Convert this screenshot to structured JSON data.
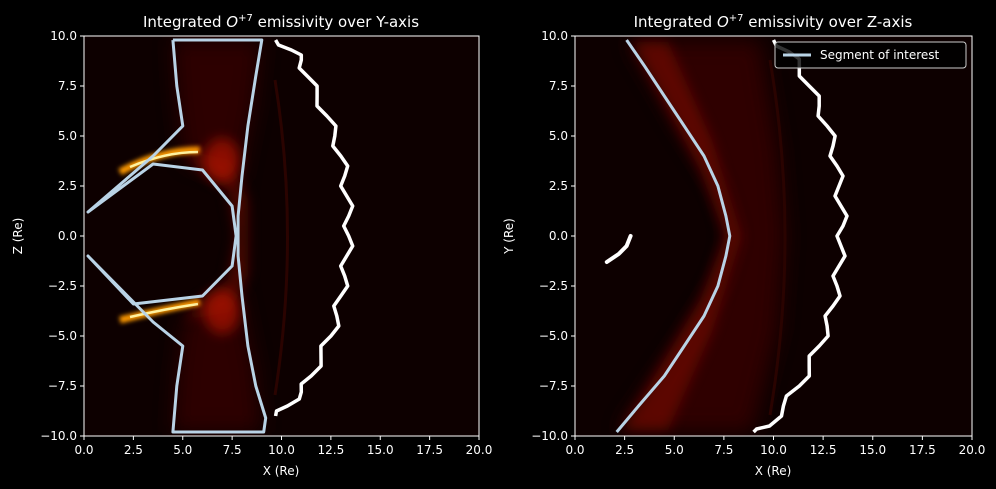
{
  "figure": {
    "background": "#000000",
    "plot_background": "#0d0000",
    "colormap": "afmhot-like",
    "contour_color_segment": "#b9d3e6",
    "contour_color_outer": "#ffffff"
  },
  "chart_data": [
    {
      "type": "heatmap",
      "title_prefix": "Integrated ",
      "title_species": "O",
      "title_superscript": "+7",
      "title_suffix": " emissivity over Y-axis",
      "xlabel": "X (Re)",
      "ylabel": "Z (Re)",
      "xlim": [
        0.0,
        20.0
      ],
      "ylim": [
        -10.0,
        10.0
      ],
      "xticks": [
        "0.0",
        "2.5",
        "5.0",
        "7.5",
        "10.0",
        "12.5",
        "15.0",
        "17.5",
        "20.0"
      ],
      "yticks": [
        "10.0",
        "7.5",
        "5.0",
        "2.5",
        "0.0",
        "−2.5",
        "−5.0",
        "−7.5",
        "−10.0"
      ],
      "grid": false,
      "legend": null,
      "series": [
        {
          "style": "light-blue outline",
          "points": [
            [
              4.5,
              9.8
            ],
            [
              9.0,
              9.8
            ],
            [
              8.7,
              8.0
            ],
            [
              8.3,
              5.5
            ],
            [
              8.0,
              3.0
            ],
            [
              7.8,
              1.0
            ],
            [
              7.8,
              -1.0
            ],
            [
              8.0,
              -3.0
            ],
            [
              8.3,
              -5.5
            ],
            [
              8.7,
              -7.5
            ],
            [
              9.2,
              -9.1
            ],
            [
              9.1,
              -9.8
            ],
            [
              4.5,
              -9.8
            ],
            [
              4.7,
              -7.5
            ],
            [
              5.0,
              -5.5
            ],
            [
              3.5,
              -4.3
            ],
            [
              0.2,
              -1.0
            ],
            [
              2.5,
              -3.4
            ],
            [
              6.0,
              -3.0
            ],
            [
              7.5,
              -1.5
            ],
            [
              7.7,
              0.0
            ],
            [
              7.5,
              1.5
            ],
            [
              6.0,
              3.3
            ],
            [
              3.5,
              3.6
            ],
            [
              0.2,
              1.2
            ],
            [
              3.5,
              4.0
            ],
            [
              5.0,
              5.5
            ],
            [
              4.7,
              7.5
            ],
            [
              4.5,
              9.8
            ]
          ]
        },
        {
          "style": "white noisy contour",
          "points": [
            [
              9.7,
              9.8
            ],
            [
              10.5,
              9.3
            ],
            [
              11.0,
              8.8
            ],
            [
              11.3,
              8.0
            ],
            [
              11.8,
              7.0
            ],
            [
              12.3,
              6.0
            ],
            [
              12.7,
              5.0
            ],
            [
              13.0,
              4.0
            ],
            [
              13.2,
              3.0
            ],
            [
              13.3,
              2.0
            ],
            [
              13.4,
              1.0
            ],
            [
              13.4,
              0.0
            ],
            [
              13.3,
              -1.0
            ],
            [
              13.2,
              -2.0
            ],
            [
              13.0,
              -3.0
            ],
            [
              12.8,
              -4.0
            ],
            [
              12.5,
              -5.0
            ],
            [
              12.0,
              -6.0
            ],
            [
              11.5,
              -7.0
            ],
            [
              11.0,
              -7.8
            ],
            [
              10.3,
              -8.5
            ],
            [
              9.7,
              -9.0
            ]
          ]
        }
      ]
    },
    {
      "type": "heatmap",
      "title_prefix": "Integrated ",
      "title_species": "O",
      "title_superscript": "+7",
      "title_suffix": " emissivity over Z-axis",
      "xlabel": "X (Re)",
      "ylabel": "Y (Re)",
      "xlim": [
        0.0,
        20.0
      ],
      "ylim": [
        -10.0,
        10.0
      ],
      "xticks": [
        "0.0",
        "2.5",
        "5.0",
        "7.5",
        "10.0",
        "12.5",
        "15.0",
        "17.5",
        "20.0"
      ],
      "yticks": [
        "10.0",
        "7.5",
        "5.0",
        "2.5",
        "0.0",
        "−2.5",
        "−5.0",
        "−7.5",
        "−10.0"
      ],
      "grid": false,
      "legend": {
        "position": "top-right",
        "entries": [
          "Segment of interest"
        ]
      },
      "series": [
        {
          "name": "Segment of interest",
          "style": "light-blue outline",
          "points": [
            [
              2.6,
              9.8
            ],
            [
              3.5,
              8.5
            ],
            [
              4.5,
              7.0
            ],
            [
              5.5,
              5.5
            ],
            [
              6.5,
              4.0
            ],
            [
              7.2,
              2.5
            ],
            [
              7.6,
              1.0
            ],
            [
              7.8,
              0.0
            ],
            [
              7.6,
              -1.0
            ],
            [
              7.2,
              -2.5
            ],
            [
              6.5,
              -4.0
            ],
            [
              5.5,
              -5.5
            ],
            [
              4.5,
              -7.0
            ],
            [
              3.2,
              -8.5
            ],
            [
              2.1,
              -9.8
            ]
          ]
        },
        {
          "style": "white noisy contour",
          "points": [
            [
              10.0,
              9.8
            ],
            [
              10.8,
              9.2
            ],
            [
              11.3,
              8.5
            ],
            [
              11.8,
              7.5
            ],
            [
              12.3,
              6.5
            ],
            [
              12.7,
              5.5
            ],
            [
              13.0,
              4.5
            ],
            [
              13.2,
              3.5
            ],
            [
              13.3,
              2.5
            ],
            [
              13.4,
              1.5
            ],
            [
              13.5,
              0.5
            ],
            [
              13.4,
              -0.5
            ],
            [
              13.3,
              -1.5
            ],
            [
              13.2,
              -2.5
            ],
            [
              13.0,
              -3.5
            ],
            [
              12.7,
              -4.5
            ],
            [
              12.3,
              -5.5
            ],
            [
              11.8,
              -6.5
            ],
            [
              11.3,
              -7.5
            ],
            [
              10.5,
              -8.5
            ],
            [
              9.8,
              -9.5
            ],
            [
              9.0,
              -9.8
            ]
          ]
        },
        {
          "style": "white arc",
          "points": [
            [
              1.6,
              -1.3
            ],
            [
              2.2,
              -0.9
            ],
            [
              2.6,
              -0.5
            ],
            [
              2.8,
              0.0
            ]
          ]
        }
      ]
    }
  ]
}
